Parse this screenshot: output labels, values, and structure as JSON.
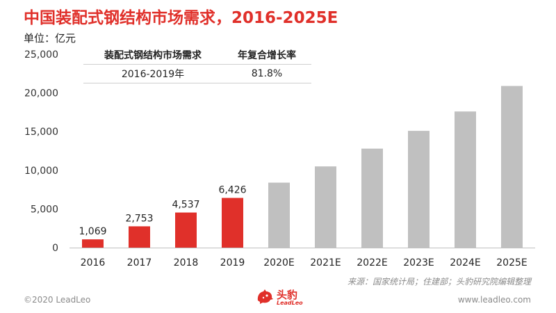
{
  "title": "中国装配式钢结构市场需求，2016-2025E",
  "unit_label": "单位：亿元",
  "cagr_table": {
    "headers": [
      "装配式钢结构市场需求",
      "年复合增长率"
    ],
    "rows": [
      [
        "2016-2019年",
        "81.8%"
      ]
    ]
  },
  "chart_data": {
    "type": "bar",
    "categories": [
      "2016",
      "2017",
      "2018",
      "2019",
      "2020E",
      "2021E",
      "2022E",
      "2023E",
      "2024E",
      "2025E"
    ],
    "series": [
      {
        "values": [
          1069,
          2753,
          4537,
          6426,
          8400,
          10500,
          12800,
          15100,
          17600,
          20900
        ],
        "labels": [
          "1,069",
          "2,753",
          "4,537",
          "6,426",
          "",
          "",
          "",
          "",
          "",
          ""
        ],
        "colors": [
          "#e0302a",
          "#e0302a",
          "#e0302a",
          "#e0302a",
          "#c0c0c0",
          "#c0c0c0",
          "#c0c0c0",
          "#c0c0c0",
          "#c0c0c0",
          "#c0c0c0"
        ]
      }
    ],
    "title": "中国装配式钢结构市场需求，2016-2025E",
    "xlabel": "",
    "ylabel": "单位：亿元",
    "ylim": [
      0,
      25000
    ],
    "yticks": [
      0,
      5000,
      10000,
      15000,
      20000,
      25000
    ],
    "ytick_labels": [
      "0",
      "5,000",
      "10,000",
      "15,000",
      "20,000",
      "25,000"
    ],
    "grid": false,
    "legend": "none"
  },
  "source": "来源：国家统计局；住建部；头豹研究院编辑整理",
  "footer": {
    "copyright": "©2020 LeadLeo",
    "website": "www.leadleo.com",
    "logo_cn": "头豹",
    "logo_en": "LeadLeo"
  },
  "colors": {
    "accent": "#e0302a",
    "forecast": "#c0c0c0"
  },
  "icons": {
    "logo": "leopard-logo-icon"
  }
}
